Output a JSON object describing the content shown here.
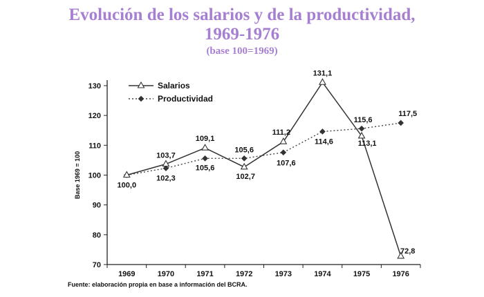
{
  "title_line1": "Evolución de los salarios y de la productividad,",
  "title_line2": "1969-1976",
  "subtitle": "(base 100=1969)",
  "source": "Fuente: elaboración propia en base a información del BCRA.",
  "chart_data": {
    "type": "line",
    "title": "Evolución de los salarios y de la productividad, 1969-1976",
    "subtitle": "(base 100=1969)",
    "x": [
      "1969",
      "1970",
      "1971",
      "1972",
      "1973",
      "1974",
      "1975",
      "1976"
    ],
    "ylabel": "Base 1969 = 100",
    "xlabel": "",
    "ylim": [
      70,
      130
    ],
    "yticks": [
      70,
      80,
      90,
      100,
      110,
      120,
      130
    ],
    "grid": false,
    "legend": "top-left",
    "series": [
      {
        "name": "Salarios",
        "values": [
          100.0,
          103.7,
          109.1,
          102.7,
          111.2,
          131.1,
          113.1,
          72.8
        ],
        "labels": [
          "100,0",
          "103,7",
          "109,1",
          "102,7",
          "111,2",
          "131,1",
          "113,1",
          "72,8"
        ],
        "style": "solid",
        "marker": "triangle-open",
        "color": "#333333"
      },
      {
        "name": "Productividad",
        "values": [
          100.0,
          102.3,
          105.6,
          105.6,
          107.6,
          114.6,
          115.6,
          117.5
        ],
        "labels": [
          "",
          "102,3",
          "105,6",
          "105,6",
          "107,6",
          "114,6",
          "115,6",
          "117,5"
        ],
        "style": "dotted",
        "marker": "diamond-filled",
        "color": "#333333"
      }
    ]
  }
}
